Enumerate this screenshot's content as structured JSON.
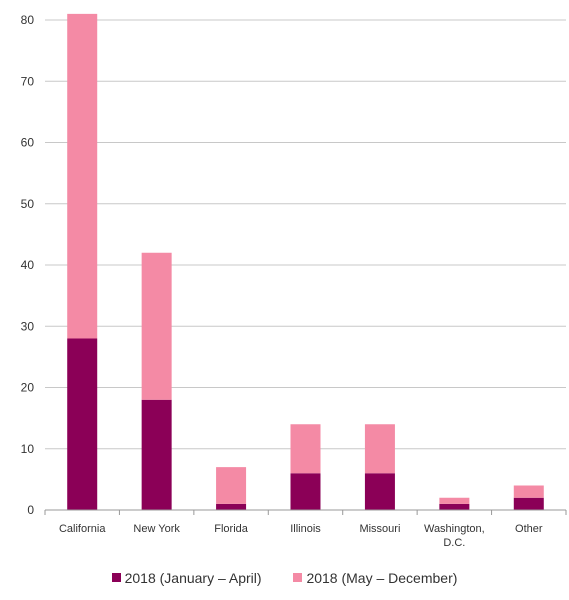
{
  "chart_data": {
    "type": "bar",
    "stacked": true,
    "categories": [
      [
        "California"
      ],
      [
        "New York"
      ],
      [
        "Florida"
      ],
      [
        "Illinois"
      ],
      [
        "Missouri"
      ],
      [
        "Washington,",
        "D.C."
      ],
      [
        "Other"
      ]
    ],
    "series": [
      {
        "name": "2018 (January – April)",
        "color": "#8b0057",
        "values": [
          28,
          18,
          1,
          6,
          6,
          1,
          2
        ]
      },
      {
        "name": "2018 (May – December)",
        "color": "#f48aa5",
        "values": [
          53,
          24,
          6,
          8,
          8,
          1,
          2
        ]
      }
    ],
    "ylim": [
      0,
      80
    ],
    "yticks": [
      0,
      10,
      20,
      30,
      40,
      50,
      60,
      70,
      80
    ],
    "grid": true,
    "legend_position": "bottom",
    "title": "",
    "xlabel": "",
    "ylabel": ""
  }
}
